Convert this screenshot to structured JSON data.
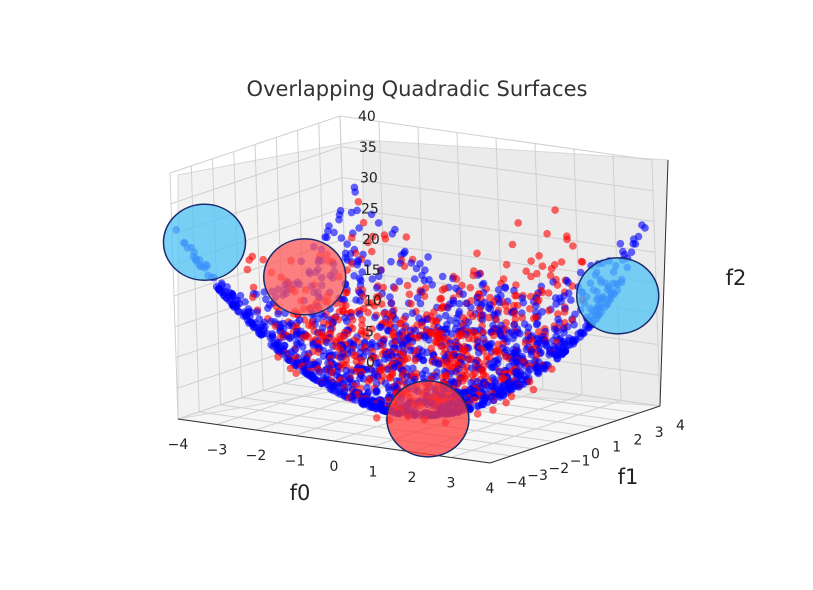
{
  "chart_data": {
    "type": "scatter",
    "title": "Overlapping Quadradic Surfaces",
    "xlabel": "f0",
    "ylabel": "f1",
    "zlabel": "f2",
    "x_ticks": [
      "−4",
      "−3",
      "−2",
      "−1",
      "0",
      "1",
      "2",
      "3",
      "4"
    ],
    "y_ticks": [
      "−4",
      "−3",
      "−2",
      "−1",
      "0",
      "1",
      "2",
      "3",
      "4"
    ],
    "z_ticks": [
      "0",
      "5",
      "10",
      "15",
      "20",
      "25",
      "30",
      "35",
      "40"
    ],
    "xlim": [
      -4,
      4
    ],
    "ylim": [
      -4,
      4
    ],
    "zlim": [
      0,
      40
    ],
    "grid": true,
    "projection": "3d",
    "series": [
      {
        "color": "#0000ff",
        "shape": "paraboloid",
        "formula": "f2 = f0^2 + f1^2"
      },
      {
        "color": "#ff0000",
        "shape": "scattered quadratic"
      }
    ],
    "highlights": [
      {
        "color": "#4fc3f7",
        "f0": -4.0,
        "f1": -2.5,
        "f2": 27
      },
      {
        "color": "#ff5a5a",
        "f0": -2.0,
        "f1": -1.5,
        "f2": 22
      },
      {
        "color": "#4fc3f7",
        "f0": 4.0,
        "f1": 2.2,
        "f2": 20
      },
      {
        "color": "#ff3b3b",
        "f0": 0.5,
        "f1": -0.5,
        "f2": 0
      }
    ]
  }
}
